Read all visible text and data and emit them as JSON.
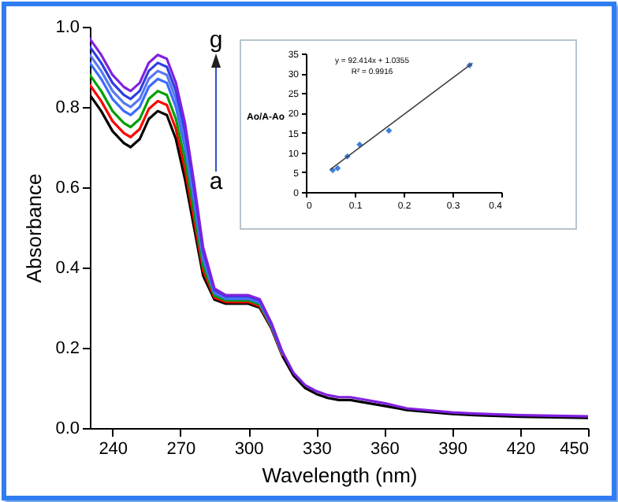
{
  "chart_data": [
    {
      "type": "line",
      "xlabel": "Wavelength (nm)",
      "ylabel": "Absorbance",
      "x": [
        230,
        235,
        240,
        245,
        248,
        252,
        256,
        260,
        264,
        268,
        272,
        276,
        280,
        285,
        290,
        295,
        300,
        305,
        310,
        315,
        320,
        325,
        330,
        335,
        340,
        345,
        350,
        355,
        360,
        370,
        380,
        390,
        400,
        420,
        450
      ],
      "series": [
        {
          "color": "#000000",
          "values": [
            0.83,
            0.79,
            0.74,
            0.71,
            0.7,
            0.72,
            0.77,
            0.79,
            0.78,
            0.72,
            0.62,
            0.5,
            0.38,
            0.32,
            0.31,
            0.31,
            0.31,
            0.3,
            0.25,
            0.18,
            0.13,
            0.1,
            0.085,
            0.075,
            0.07,
            0.07,
            0.065,
            0.06,
            0.055,
            0.045,
            0.04,
            0.035,
            0.032,
            0.028,
            0.025
          ]
        },
        {
          "color": "#ff0000",
          "values": [
            0.855,
            0.815,
            0.765,
            0.735,
            0.725,
            0.745,
            0.795,
            0.815,
            0.805,
            0.745,
            0.645,
            0.52,
            0.393,
            0.325,
            0.314,
            0.314,
            0.314,
            0.304,
            0.253,
            0.182,
            null,
            null,
            null,
            null,
            null,
            null,
            null,
            null,
            null,
            null,
            null,
            null,
            null,
            null,
            null
          ]
        },
        {
          "color": "#00a000",
          "values": [
            0.88,
            0.84,
            0.79,
            0.76,
            0.75,
            0.77,
            0.82,
            0.84,
            0.83,
            0.77,
            0.67,
            0.54,
            0.405,
            0.33,
            0.318,
            0.318,
            0.318,
            0.308,
            0.255,
            0.184,
            null,
            null,
            null,
            null,
            null,
            null,
            null,
            null,
            null,
            null,
            null,
            null,
            null,
            null,
            null
          ]
        },
        {
          "color": "#3a6cff",
          "values": [
            0.91,
            0.87,
            0.82,
            0.79,
            0.78,
            0.8,
            0.85,
            0.87,
            0.86,
            0.8,
            0.7,
            0.564,
            0.42,
            0.336,
            0.322,
            0.322,
            0.322,
            0.312,
            0.258,
            0.186,
            null,
            null,
            null,
            null,
            null,
            null,
            null,
            null,
            null,
            null,
            null,
            null,
            null,
            null,
            null
          ]
        },
        {
          "color": "#5a78f0",
          "values": [
            0.93,
            0.89,
            0.84,
            0.81,
            0.8,
            0.82,
            0.87,
            0.89,
            0.88,
            0.82,
            0.72,
            0.58,
            0.43,
            0.34,
            0.325,
            0.325,
            0.325,
            0.315,
            0.26,
            0.187,
            null,
            null,
            null,
            null,
            null,
            null,
            null,
            null,
            null,
            null,
            null,
            null,
            null,
            null,
            null
          ]
        },
        {
          "color": "#2f3fe0",
          "values": [
            0.95,
            0.91,
            0.86,
            0.83,
            0.82,
            0.84,
            0.89,
            0.91,
            0.9,
            0.84,
            0.74,
            0.596,
            0.44,
            0.344,
            0.328,
            0.328,
            0.328,
            0.318,
            0.262,
            0.188,
            null,
            null,
            null,
            null,
            null,
            null,
            null,
            null,
            null,
            null,
            null,
            null,
            null,
            null,
            null
          ]
        },
        {
          "color": "#8020e0",
          "values": [
            0.97,
            0.93,
            0.88,
            0.85,
            0.84,
            0.86,
            0.91,
            0.93,
            0.92,
            0.86,
            0.76,
            0.612,
            0.45,
            0.348,
            0.331,
            0.331,
            0.331,
            0.321,
            0.264,
            0.19,
            0.137,
            0.107,
            0.092,
            0.082,
            0.077,
            0.077,
            0.072,
            0.067,
            0.062,
            0.049,
            0.044,
            0.039,
            0.036,
            0.032,
            0.029
          ]
        }
      ],
      "xlim": [
        230,
        450
      ],
      "xticks": [
        240,
        270,
        300,
        330,
        360,
        390,
        420,
        450
      ],
      "ylim": [
        0,
        1.0
      ],
      "yticks": [
        {
          "value": 0,
          "label": "0.0"
        },
        0.2,
        0.4,
        0.6,
        0.8,
        {
          "value": 1,
          "label": "1.0"
        }
      ],
      "annotations": [
        "g",
        "a"
      ]
    },
    {
      "type": "scatter",
      "ylabel": "Ao/A-Ao",
      "series": [
        {
          "color": "#3d7fe0",
          "marker": "diamond",
          "x": [
            0.055,
            0.065,
            0.085,
            0.11,
            0.17,
            0.335
          ],
          "values": [
            5.5,
            6,
            9,
            12,
            15.5,
            32
          ]
        },
        {
          "type": "line",
          "color": "#404040",
          "x": [
            0.05,
            0.34
          ],
          "values": [
            5.7,
            32.5
          ]
        }
      ],
      "xlim": [
        0,
        0.4
      ],
      "xticks": [
        0,
        0.1,
        0.2,
        0.3,
        0.4
      ],
      "ylim": [
        0,
        35
      ],
      "yticks": [
        0,
        5,
        10,
        15,
        20,
        25,
        30,
        35
      ],
      "annotations": [
        "y = 92.414x + 1.0355",
        "R² = 0.9916"
      ]
    }
  ]
}
